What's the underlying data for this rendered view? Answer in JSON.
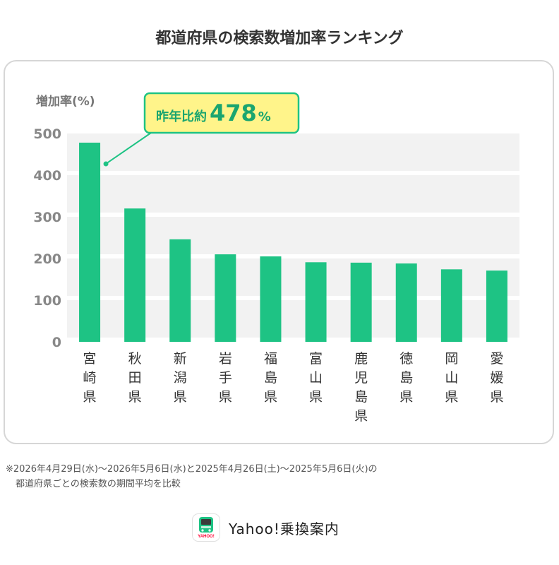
{
  "title": "都道府県の検索数増加率ランキング",
  "chart_data": {
    "type": "bar",
    "ylabel": "増加率(%)",
    "ylim": [
      0,
      500
    ],
    "yticks": [
      0,
      100,
      200,
      300,
      400,
      500
    ],
    "grid": true,
    "categories": [
      "宮崎県",
      "秋田県",
      "新潟県",
      "岩手県",
      "福島県",
      "富山県",
      "鹿児島県",
      "徳島県",
      "岡山県",
      "愛媛県"
    ],
    "values": [
      478,
      320,
      246,
      210,
      205,
      191,
      190,
      188,
      174,
      171
    ],
    "bar_color": "#1ec384",
    "annotation": {
      "prefix": "昨年比約",
      "value": "478",
      "unit": "%",
      "target_index": 0,
      "box_color": "#fff48a",
      "border_color": "#1ec384"
    }
  },
  "footnote": {
    "line1": "※2026年4月29日(水)〜2026年5月6日(水)と2025年4月26日(土)〜2025年5月6日(火)の",
    "line2": "都道府県ごとの検索数の期間平均を比較"
  },
  "brand": {
    "name": "Yahoo!乗換案内",
    "icon": "train-icon",
    "icon_label": "YAHOO!"
  }
}
